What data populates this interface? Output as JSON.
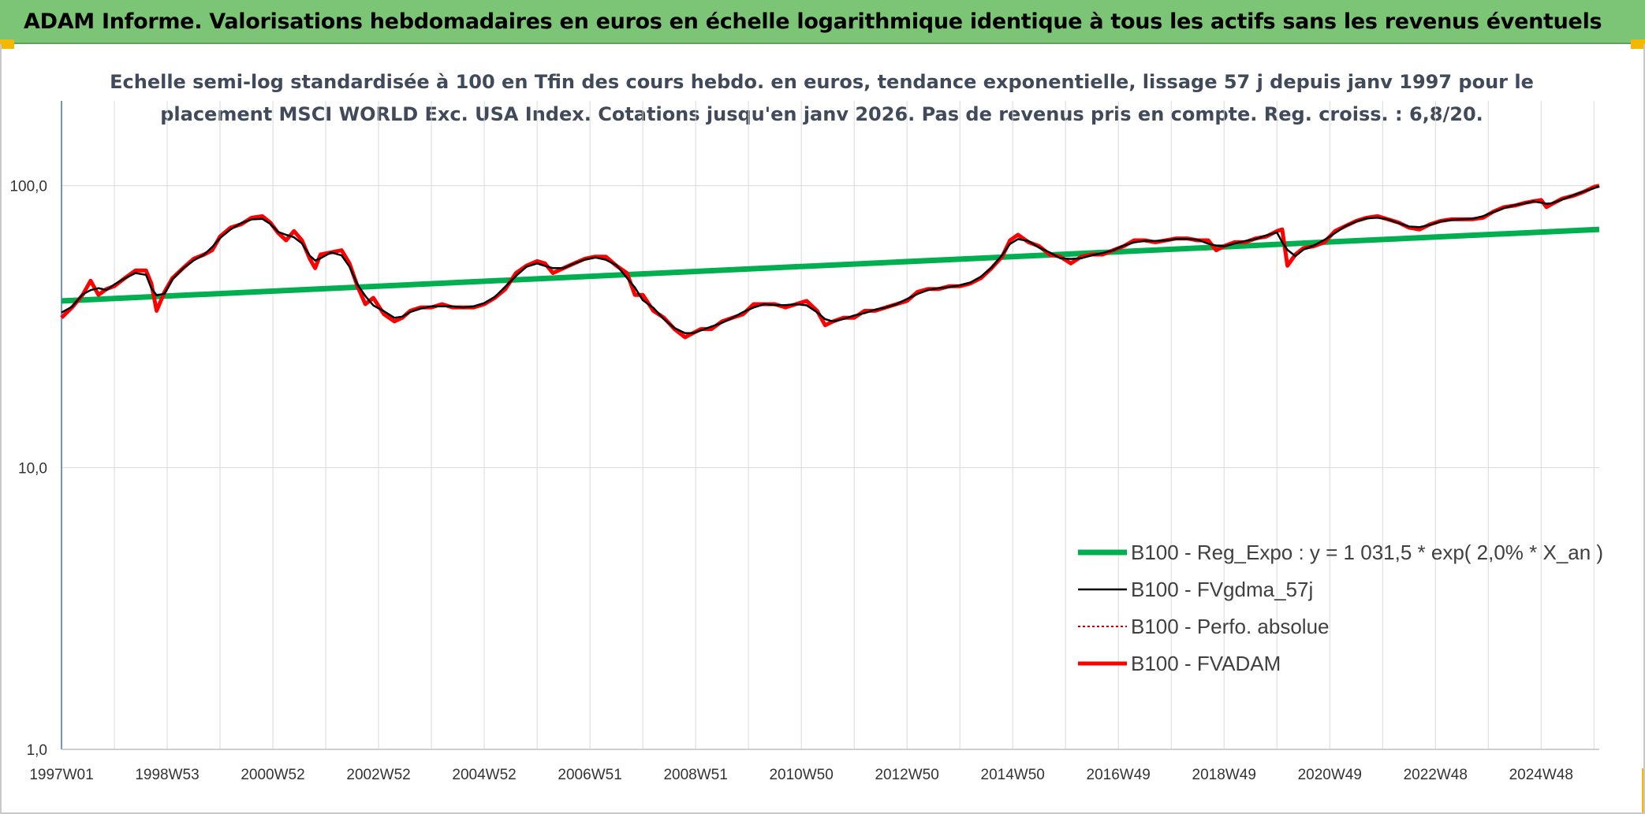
{
  "banner": {
    "title": "ADAM Informe. Valorisations hebdomadaires en euros en échelle logarithmique identique à tous les actifs sans les revenus éventuels"
  },
  "colors": {
    "banner_bg": "#7cc576",
    "trend": "#00b050",
    "smooth": "#000000",
    "perfo": "#c00000",
    "adam": "#ff0000",
    "grid": "#d9d9d9",
    "y_axis": "#4472c4"
  },
  "chart_data": {
    "type": "line",
    "title_line1": "Echelle semi-log standardisée à 100 en Tfin des cours hebdo. en euros, tendance exponentielle, lissage 57 j depuis janv 1997 pour le",
    "title_line2": "placement MSCI WORLD Exc. USA Index. Cotations jusqu'en janv 2026. Pas de revenus pris en compte. Reg. croiss. : 6,8/20.",
    "y_scale": "log",
    "ylim": [
      1,
      200
    ],
    "y_ticks": [
      {
        "value": 1,
        "label": "1,0"
      },
      {
        "value": 10,
        "label": "10,0"
      },
      {
        "value": 100,
        "label": "100,0"
      }
    ],
    "x_range": [
      1997.0,
      2026.1
    ],
    "x_ticks": [
      {
        "x": 1997.0,
        "label": "1997W01"
      },
      {
        "x": 1999.0,
        "label": "1998W53"
      },
      {
        "x": 2001.0,
        "label": "2000W52"
      },
      {
        "x": 2003.0,
        "label": "2002W52"
      },
      {
        "x": 2005.0,
        "label": "2004W52"
      },
      {
        "x": 2007.0,
        "label": "2006W51"
      },
      {
        "x": 2009.0,
        "label": "2008W51"
      },
      {
        "x": 2011.0,
        "label": "2010W50"
      },
      {
        "x": 2013.0,
        "label": "2012W50"
      },
      {
        "x": 2015.0,
        "label": "2014W50"
      },
      {
        "x": 2017.0,
        "label": "2016W49"
      },
      {
        "x": 2019.0,
        "label": "2018W49"
      },
      {
        "x": 2021.0,
        "label": "2020W49"
      },
      {
        "x": 2023.0,
        "label": "2022W48"
      },
      {
        "x": 2025.0,
        "label": "2024W48"
      }
    ],
    "grid": true,
    "legend_position": "bottom-right",
    "series": [
      {
        "name": "B100 - Reg_Expo : y = 1 031,5 * exp( 2,0% *  X_an )",
        "style": "trend",
        "points": [
          [
            1997.0,
            39
          ],
          [
            2026.1,
            70
          ]
        ]
      },
      {
        "name": "B100 - FVgdma_57j",
        "style": "smooth",
        "points": []
      },
      {
        "name": "B100 - Perfo. absolue",
        "style": "perfo",
        "points": []
      },
      {
        "name": "B100 - FVADAM",
        "style": "adam",
        "points": [
          [
            1997.0,
            34
          ],
          [
            1997.2,
            37
          ],
          [
            1997.4,
            41
          ],
          [
            1997.55,
            46
          ],
          [
            1997.7,
            41
          ],
          [
            1997.85,
            43
          ],
          [
            1998.0,
            44
          ],
          [
            1998.2,
            47
          ],
          [
            1998.4,
            50
          ],
          [
            1998.6,
            50
          ],
          [
            1998.7,
            45
          ],
          [
            1998.8,
            36
          ],
          [
            1998.95,
            42
          ],
          [
            1999.1,
            47
          ],
          [
            1999.3,
            51
          ],
          [
            1999.5,
            55
          ],
          [
            1999.7,
            57
          ],
          [
            1999.85,
            59
          ],
          [
            2000.0,
            66
          ],
          [
            2000.2,
            71
          ],
          [
            2000.4,
            73
          ],
          [
            2000.6,
            77
          ],
          [
            2000.8,
            78
          ],
          [
            2000.95,
            74
          ],
          [
            2001.1,
            68
          ],
          [
            2001.25,
            64
          ],
          [
            2001.4,
            69
          ],
          [
            2001.55,
            64
          ],
          [
            2001.7,
            55
          ],
          [
            2001.8,
            51
          ],
          [
            2001.9,
            57
          ],
          [
            2002.1,
            58
          ],
          [
            2002.3,
            59
          ],
          [
            2002.45,
            53
          ],
          [
            2002.6,
            44
          ],
          [
            2002.75,
            38
          ],
          [
            2002.9,
            40
          ],
          [
            2003.1,
            35
          ],
          [
            2003.3,
            33
          ],
          [
            2003.45,
            34
          ],
          [
            2003.6,
            36
          ],
          [
            2003.8,
            37
          ],
          [
            2004.0,
            37
          ],
          [
            2004.2,
            38
          ],
          [
            2004.4,
            37
          ],
          [
            2004.6,
            37
          ],
          [
            2004.8,
            37
          ],
          [
            2005.0,
            38
          ],
          [
            2005.2,
            40
          ],
          [
            2005.4,
            43
          ],
          [
            2005.6,
            49
          ],
          [
            2005.8,
            52
          ],
          [
            2006.0,
            54
          ],
          [
            2006.15,
            53
          ],
          [
            2006.3,
            49
          ],
          [
            2006.5,
            51
          ],
          [
            2006.7,
            53
          ],
          [
            2006.9,
            55
          ],
          [
            2007.1,
            56
          ],
          [
            2007.3,
            56
          ],
          [
            2007.5,
            52
          ],
          [
            2007.7,
            49
          ],
          [
            2007.85,
            41
          ],
          [
            2008.0,
            41
          ],
          [
            2008.2,
            36
          ],
          [
            2008.4,
            34
          ],
          [
            2008.6,
            31
          ],
          [
            2008.8,
            29
          ],
          [
            2008.95,
            30
          ],
          [
            2009.1,
            31
          ],
          [
            2009.3,
            31
          ],
          [
            2009.5,
            33
          ],
          [
            2009.7,
            34
          ],
          [
            2009.9,
            35
          ],
          [
            2010.1,
            38
          ],
          [
            2010.3,
            38
          ],
          [
            2010.5,
            38
          ],
          [
            2010.7,
            37
          ],
          [
            2010.9,
            38
          ],
          [
            2011.1,
            39
          ],
          [
            2011.3,
            36
          ],
          [
            2011.45,
            32
          ],
          [
            2011.6,
            33
          ],
          [
            2011.8,
            34
          ],
          [
            2012.0,
            34
          ],
          [
            2012.2,
            36
          ],
          [
            2012.4,
            36
          ],
          [
            2012.6,
            37
          ],
          [
            2012.8,
            38
          ],
          [
            2013.0,
            39
          ],
          [
            2013.2,
            42
          ],
          [
            2013.4,
            43
          ],
          [
            2013.6,
            43
          ],
          [
            2013.8,
            44
          ],
          [
            2014.0,
            44
          ],
          [
            2014.2,
            45
          ],
          [
            2014.4,
            47
          ],
          [
            2014.6,
            51
          ],
          [
            2014.8,
            56
          ],
          [
            2014.95,
            64
          ],
          [
            2015.1,
            67
          ],
          [
            2015.3,
            63
          ],
          [
            2015.5,
            61
          ],
          [
            2015.7,
            57
          ],
          [
            2015.9,
            56
          ],
          [
            2016.1,
            53
          ],
          [
            2016.3,
            56
          ],
          [
            2016.5,
            57
          ],
          [
            2016.7,
            57
          ],
          [
            2016.9,
            59
          ],
          [
            2017.1,
            61
          ],
          [
            2017.3,
            64
          ],
          [
            2017.5,
            64
          ],
          [
            2017.7,
            63
          ],
          [
            2017.9,
            64
          ],
          [
            2018.1,
            65
          ],
          [
            2018.3,
            65
          ],
          [
            2018.5,
            64
          ],
          [
            2018.7,
            64
          ],
          [
            2018.85,
            59
          ],
          [
            2019.0,
            61
          ],
          [
            2019.2,
            63
          ],
          [
            2019.4,
            63
          ],
          [
            2019.6,
            65
          ],
          [
            2019.8,
            66
          ],
          [
            2020.0,
            69
          ],
          [
            2020.1,
            70
          ],
          [
            2020.2,
            52
          ],
          [
            2020.35,
            57
          ],
          [
            2020.5,
            60
          ],
          [
            2020.7,
            61
          ],
          [
            2020.9,
            63
          ],
          [
            2021.1,
            69
          ],
          [
            2021.3,
            72
          ],
          [
            2021.5,
            75
          ],
          [
            2021.7,
            77
          ],
          [
            2021.9,
            78
          ],
          [
            2022.1,
            76
          ],
          [
            2022.3,
            74
          ],
          [
            2022.5,
            71
          ],
          [
            2022.7,
            70
          ],
          [
            2022.9,
            73
          ],
          [
            2023.1,
            75
          ],
          [
            2023.3,
            76
          ],
          [
            2023.5,
            76
          ],
          [
            2023.7,
            76
          ],
          [
            2023.9,
            77
          ],
          [
            2024.1,
            81
          ],
          [
            2024.3,
            84
          ],
          [
            2024.5,
            85
          ],
          [
            2024.7,
            87
          ],
          [
            2024.85,
            88
          ],
          [
            2025.0,
            89
          ],
          [
            2025.1,
            84
          ],
          [
            2025.2,
            86
          ],
          [
            2025.4,
            90
          ],
          [
            2025.6,
            92
          ],
          [
            2025.8,
            95
          ],
          [
            2026.0,
            99
          ],
          [
            2026.1,
            100
          ]
        ]
      }
    ]
  }
}
